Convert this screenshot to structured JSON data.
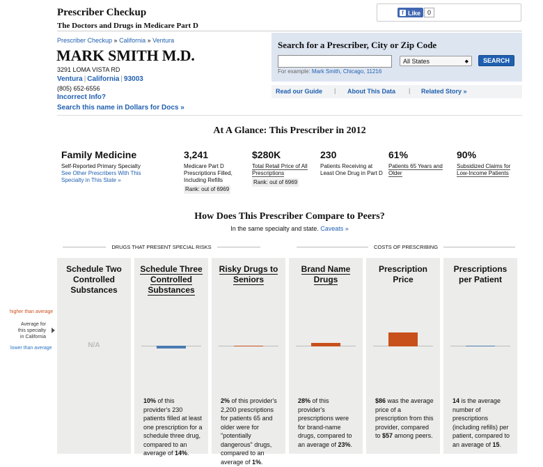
{
  "header": {
    "title": "Prescriber Checkup",
    "subtitle": "The Doctors and Drugs in Medicare Part D"
  },
  "facebook": {
    "like_label": "Like",
    "count": "0"
  },
  "breadcrumb": {
    "items": [
      "Prescriber Checkup",
      "California",
      "Ventura"
    ],
    "separator": "»"
  },
  "prescriber": {
    "name": "MARK SMITH M.D.",
    "address": "3291 LOMA VISTA RD",
    "city": "Ventura",
    "state": "California",
    "zip": "93003",
    "phone": "(805) 652-6556",
    "incorrect_label": "Incorrect Info?",
    "dollars_label": "Search this name in Dollars for Docs »"
  },
  "search": {
    "title": "Search for a Prescriber, City or Zip Code",
    "value": "",
    "example_prefix": "For example:",
    "example_links": "Mark Smith, Chicago, 11216",
    "state_value": "All States",
    "button_label": "SEARCH"
  },
  "links": {
    "guide": "Read our Guide",
    "about": "About This Data",
    "story": "Related Story »"
  },
  "glance": {
    "title": "At A Glance: This Prescriber in 2012",
    "specialty": "Family Medicine",
    "specialty_label": "Self-Reported Primary Specialty",
    "specialty_link": "See Other Prescribers With This Specialty in This State »",
    "rx_value": "3,241",
    "rx_label": "Medicare Part D Prescriptions Filled, Including Refills",
    "rx_rank": "Rank: out of 6969",
    "cost_value": "$280K",
    "cost_label": "Total Retail Price of All Prescriptions",
    "cost_rank": "Rank: out of 6969",
    "patients_value": "230",
    "patients_label": "Patients Receiving at Least One Drug in Part D",
    "age_value": "61%",
    "age_label": "Patients 65 Years and Older",
    "subsidy_value": "90%",
    "subsidy_label": "Subsidized Claims for Low-Income Patients"
  },
  "compare": {
    "title": "How Does This Prescriber Compare to Peers?",
    "subtitle": "In the same specialty and state.",
    "caveats": "Caveats »",
    "group_risks": "DRUGS THAT PRESENT SPECIAL RISKS",
    "group_costs": "COSTS OF PRESCRIBING",
    "legend_high": "higher than average",
    "legend_avg": "Average for this specialty in California",
    "legend_low": "lower than average",
    "colors": {
      "higher": "#c8501a",
      "lower": "#4a7ab0"
    },
    "columns": [
      {
        "title": "Schedule Two Controlled Substances",
        "na": "N/A",
        "direction": "none",
        "relative": 0,
        "desc": []
      },
      {
        "title": "Schedule Three Controlled Substances",
        "direction": "lower",
        "relative": 0.1,
        "desc": [
          {
            "b": "10%"
          },
          {
            "t": " of this provider's 230 patients filled at least one prescription for a schedule three drug, compared to an average of "
          },
          {
            "b": "14%"
          },
          {
            "t": "."
          }
        ]
      },
      {
        "title": "Risky Drugs to Seniors",
        "direction": "higher",
        "relative": 0.03,
        "desc": [
          {
            "b": "2%"
          },
          {
            "t": " of this provider's 2,200 prescriptions for patients 65 and older were for \"potentially dangerous\" drugs, compared to an average of "
          },
          {
            "b": "1%"
          },
          {
            "t": "."
          }
        ]
      },
      {
        "title": "Brand Name Drugs",
        "direction": "higher",
        "relative": 0.12,
        "desc": [
          {
            "b": "28%"
          },
          {
            "t": " of this provider's prescriptions were for brand-name drugs, compared to an average of "
          },
          {
            "b": "23%"
          },
          {
            "t": "."
          }
        ]
      },
      {
        "title": "Prescription Price",
        "direction": "higher",
        "relative": 0.5,
        "desc": [
          {
            "b": "$86"
          },
          {
            "t": " was the average price of a prescription from this provider, compared to "
          },
          {
            "b": "$57"
          },
          {
            "t": " among peers."
          }
        ]
      },
      {
        "title": "Prescriptions per Patient",
        "direction": "lower",
        "relative": 0.02,
        "desc": [
          {
            "b": "14"
          },
          {
            "t": " is the average number of prescriptions (including refills) per patient, compared to an average of "
          },
          {
            "b": "15"
          },
          {
            "t": "."
          }
        ]
      }
    ]
  }
}
